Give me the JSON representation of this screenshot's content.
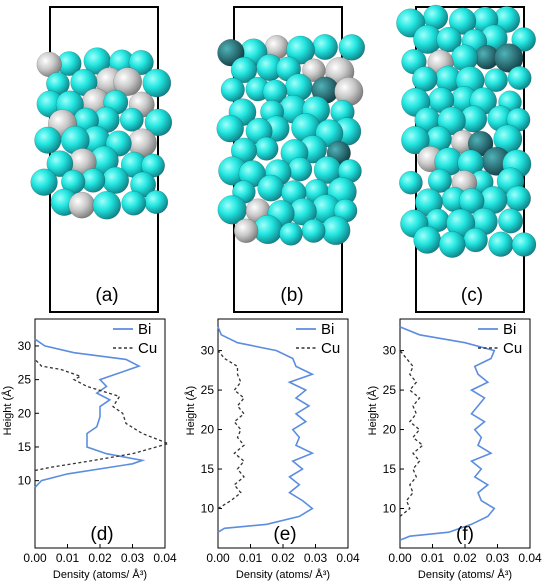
{
  "panels_top": [
    {
      "label": "(a)"
    },
    {
      "label": "(b)"
    },
    {
      "label": "(c)"
    }
  ],
  "colors": {
    "bi": "#5b8de0",
    "cu": "#333333",
    "sphere_main": "#22e6e0",
    "sphere_alt": "#bfbfbf",
    "sphere_dark": "#1a6b78"
  },
  "atom_counts_note": "",
  "chart_data": [
    {
      "type": "line",
      "panel": "(d)",
      "xlabel": "Density  (atoms/ Å³)",
      "ylabel": "Height  (Å)",
      "xlim": [
        0.0,
        0.04
      ],
      "ylim": [
        0,
        34
      ],
      "xticks": [
        "0.00",
        "0.01",
        "0.02",
        "0.03",
        "0.04"
      ],
      "yticks": [
        "10",
        "15",
        "20",
        "25",
        "30"
      ],
      "series": [
        {
          "name": "Bi",
          "style": "solid",
          "points": [
            [
              0.0,
              9
            ],
            [
              0.002,
              10
            ],
            [
              0.01,
              11
            ],
            [
              0.03,
              12.5
            ],
            [
              0.033,
              13
            ],
            [
              0.022,
              14
            ],
            [
              0.016,
              15
            ],
            [
              0.016,
              17
            ],
            [
              0.019,
              18
            ],
            [
              0.02,
              19.5
            ],
            [
              0.02,
              21
            ],
            [
              0.023,
              22
            ],
            [
              0.019,
              23
            ],
            [
              0.022,
              24
            ],
            [
              0.02,
              25
            ],
            [
              0.026,
              26
            ],
            [
              0.032,
              27
            ],
            [
              0.028,
              28
            ],
            [
              0.012,
              29
            ],
            [
              0.003,
              30
            ],
            [
              0.0,
              31
            ]
          ]
        },
        {
          "name": "Cu",
          "style": "dashed",
          "points": [
            [
              0.0,
              11.5
            ],
            [
              0.005,
              12
            ],
            [
              0.018,
              13
            ],
            [
              0.03,
              14
            ],
            [
              0.041,
              15.5
            ],
            [
              0.033,
              17
            ],
            [
              0.028,
              18.5
            ],
            [
              0.027,
              20
            ],
            [
              0.024,
              21
            ],
            [
              0.026,
              22.5
            ],
            [
              0.016,
              24
            ],
            [
              0.012,
              25
            ],
            [
              0.014,
              25.5
            ],
            [
              0.008,
              26.5
            ],
            [
              0.002,
              27
            ],
            [
              0.0,
              28
            ]
          ]
        }
      ]
    },
    {
      "type": "line",
      "panel": "(e)",
      "xlabel": "Density  (atoms/ Å³)",
      "ylabel": "Height  (Å)",
      "xlim": [
        0.0,
        0.04
      ],
      "ylim": [
        5,
        34
      ],
      "xticks": [
        "0.00",
        "0.01",
        "0.02",
        "0.03",
        "0.04"
      ],
      "yticks": [
        "10",
        "15",
        "20",
        "25",
        "30"
      ],
      "series": [
        {
          "name": "Bi",
          "style": "solid",
          "points": [
            [
              0.0,
              7
            ],
            [
              0.002,
              7.5
            ],
            [
              0.015,
              8
            ],
            [
              0.025,
              9
            ],
            [
              0.029,
              10
            ],
            [
              0.026,
              11
            ],
            [
              0.022,
              12
            ],
            [
              0.025,
              13
            ],
            [
              0.022,
              14
            ],
            [
              0.026,
              15
            ],
            [
              0.023,
              16
            ],
            [
              0.029,
              17
            ],
            [
              0.024,
              18
            ],
            [
              0.025,
              19
            ],
            [
              0.023,
              20
            ],
            [
              0.027,
              21
            ],
            [
              0.024,
              22
            ],
            [
              0.028,
              23
            ],
            [
              0.024,
              24
            ],
            [
              0.027,
              25
            ],
            [
              0.022,
              26
            ],
            [
              0.029,
              27
            ],
            [
              0.024,
              28
            ],
            [
              0.023,
              29
            ],
            [
              0.018,
              30
            ],
            [
              0.006,
              31
            ],
            [
              0.001,
              32
            ],
            [
              0.0,
              33
            ]
          ]
        },
        {
          "name": "Cu",
          "style": "dashed",
          "points": [
            [
              0.0,
              10
            ],
            [
              0.004,
              11
            ],
            [
              0.007,
              12
            ],
            [
              0.005,
              13
            ],
            [
              0.008,
              14
            ],
            [
              0.006,
              15
            ],
            [
              0.008,
              16
            ],
            [
              0.005,
              17
            ],
            [
              0.008,
              18
            ],
            [
              0.006,
              19
            ],
            [
              0.007,
              20
            ],
            [
              0.005,
              21
            ],
            [
              0.008,
              22
            ],
            [
              0.006,
              23
            ],
            [
              0.008,
              24
            ],
            [
              0.005,
              25
            ],
            [
              0.007,
              26
            ],
            [
              0.006,
              27
            ],
            [
              0.006,
              28
            ],
            [
              0.002,
              29
            ],
            [
              0.0,
              30
            ]
          ]
        }
      ]
    },
    {
      "type": "line",
      "panel": "(f)",
      "xlabel": "Density  (atoms/ Å³)",
      "ylabel": "Height  (Å)",
      "xlim": [
        0.0,
        0.04
      ],
      "ylim": [
        5,
        34
      ],
      "xticks": [
        "0.00",
        "0.01",
        "0.02",
        "0.03",
        "0.04"
      ],
      "yticks": [
        "10",
        "15",
        "20",
        "25",
        "30"
      ],
      "series": [
        {
          "name": "Bi",
          "style": "solid",
          "points": [
            [
              0.0,
              6
            ],
            [
              0.003,
              6.5
            ],
            [
              0.015,
              7
            ],
            [
              0.022,
              8
            ],
            [
              0.027,
              9
            ],
            [
              0.029,
              10
            ],
            [
              0.025,
              11
            ],
            [
              0.024,
              12
            ],
            [
              0.027,
              13
            ],
            [
              0.023,
              14
            ],
            [
              0.025,
              15
            ],
            [
              0.022,
              16
            ],
            [
              0.028,
              17
            ],
            [
              0.024,
              18
            ],
            [
              0.025,
              19
            ],
            [
              0.023,
              20
            ],
            [
              0.026,
              21
            ],
            [
              0.022,
              22
            ],
            [
              0.024,
              23
            ],
            [
              0.026,
              24
            ],
            [
              0.022,
              25
            ],
            [
              0.027,
              26
            ],
            [
              0.024,
              27
            ],
            [
              0.023,
              28
            ],
            [
              0.028,
              29
            ],
            [
              0.029,
              30
            ],
            [
              0.02,
              31
            ],
            [
              0.006,
              32
            ],
            [
              0.0,
              33
            ]
          ]
        },
        {
          "name": "Cu",
          "style": "dashed",
          "points": [
            [
              0.0,
              9
            ],
            [
              0.003,
              10
            ],
            [
              0.002,
              11
            ],
            [
              0.004,
              12
            ],
            [
              0.003,
              13
            ],
            [
              0.005,
              14
            ],
            [
              0.004,
              15
            ],
            [
              0.006,
              16
            ],
            [
              0.004,
              17
            ],
            [
              0.007,
              18
            ],
            [
              0.004,
              19
            ],
            [
              0.006,
              20
            ],
            [
              0.003,
              21
            ],
            [
              0.005,
              22
            ],
            [
              0.004,
              23
            ],
            [
              0.006,
              24
            ],
            [
              0.003,
              25
            ],
            [
              0.005,
              26
            ],
            [
              0.003,
              27
            ],
            [
              0.004,
              28
            ],
            [
              0.002,
              29
            ],
            [
              0.0,
              30
            ]
          ]
        }
      ]
    }
  ]
}
